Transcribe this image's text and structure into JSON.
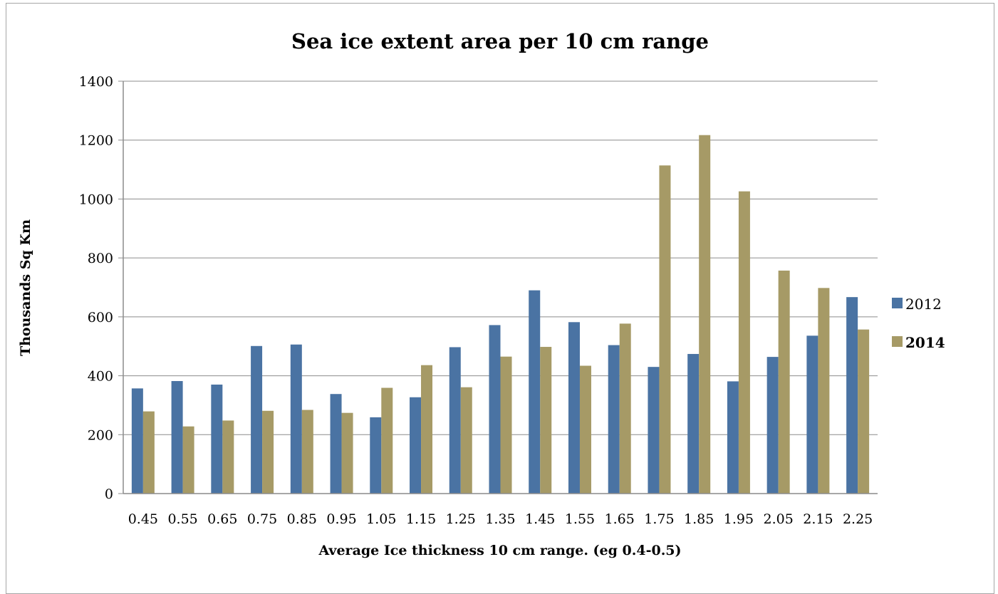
{
  "chart_data": {
    "type": "bar",
    "title": "Sea ice extent area per 10 cm range",
    "xlabel": "Average Ice thickness 10 cm range. (eg 0.4-0.5)",
    "ylabel": "Thousands Sq Km",
    "ylim": [
      0,
      1400
    ],
    "yticks": [
      "0",
      "200",
      "400",
      "600",
      "800",
      "1000",
      "1200",
      "1400"
    ],
    "grid": "horizontal",
    "legend": "right",
    "categories": [
      "0.45",
      "0.55",
      "0.65",
      "0.75",
      "0.85",
      "0.95",
      "1.05",
      "1.15",
      "1.25",
      "1.35",
      "1.45",
      "1.55",
      "1.65",
      "1.75",
      "1.85",
      "1.95",
      "2.05",
      "2.15",
      "2.25"
    ],
    "series": [
      {
        "name": "2012",
        "color": "#4a73a3",
        "values": [
          357,
          382,
          370,
          501,
          506,
          338,
          259,
          327,
          497,
          572,
          690,
          582,
          504,
          430,
          474,
          381,
          464,
          536,
          667
        ]
      },
      {
        "name": "2014",
        "color": "#a69a66",
        "values": [
          279,
          228,
          248,
          281,
          284,
          274,
          359,
          436,
          361,
          465,
          498,
          434,
          577,
          1114,
          1217,
          1026,
          757,
          698,
          557
        ]
      }
    ]
  }
}
